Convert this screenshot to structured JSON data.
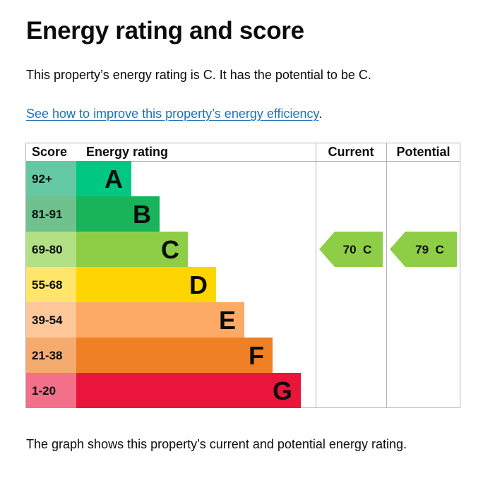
{
  "page": {
    "title": "Energy rating and score",
    "intro": "This property’s energy rating is C. It has the potential to be C.",
    "link_text": "See how to improve this property’s energy efficiency",
    "link_suffix": ".",
    "footer": "The graph shows this property’s current and potential energy rating."
  },
  "chart_data": {
    "type": "bar",
    "headers": {
      "score": "Score",
      "rating": "Energy rating",
      "current": "Current",
      "potential": "Potential"
    },
    "bands": [
      {
        "band": "A",
        "score_range": "92+",
        "color": "#00c781",
        "score_color": "#64c9a3"
      },
      {
        "band": "B",
        "score_range": "81-91",
        "color": "#19b459",
        "score_color": "#6fc18d"
      },
      {
        "band": "C",
        "score_range": "69-80",
        "color": "#8dce46",
        "score_color": "#b3e085"
      },
      {
        "band": "D",
        "score_range": "55-68",
        "color": "#ffd500",
        "score_color": "#ffe66b"
      },
      {
        "band": "E",
        "score_range": "39-54",
        "color": "#fcaa65",
        "score_color": "#fdc79a"
      },
      {
        "band": "F",
        "score_range": "21-38",
        "color": "#ef8023",
        "score_color": "#f5ab6e"
      },
      {
        "band": "G",
        "score_range": "1-20",
        "color": "#e9153b",
        "score_color": "#f2708a"
      }
    ],
    "current": {
      "score": 70,
      "band": "C",
      "label": "70  C"
    },
    "potential": {
      "score": 79,
      "band": "C",
      "label": "79  C"
    }
  }
}
